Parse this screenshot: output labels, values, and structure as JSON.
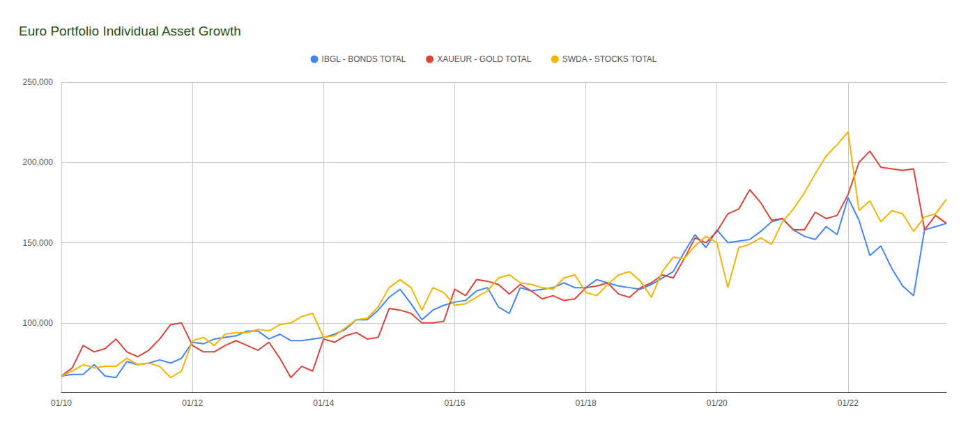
{
  "chart_data": {
    "type": "line",
    "title": "Euro Portfolio Individual Asset Growth",
    "categories": [
      "01/10",
      null,
      null,
      null,
      null,
      null,
      null,
      null,
      null,
      null,
      null,
      null,
      "01/12",
      null,
      null,
      null,
      null,
      null,
      null,
      null,
      null,
      null,
      null,
      null,
      "01/14",
      null,
      null,
      null,
      null,
      null,
      null,
      null,
      null,
      null,
      null,
      null,
      "01/16",
      null,
      null,
      null,
      null,
      null,
      null,
      null,
      null,
      null,
      null,
      null,
      "01/18",
      null,
      null,
      null,
      null,
      null,
      null,
      null,
      null,
      null,
      null,
      null,
      "01/20",
      null,
      null,
      null,
      null,
      null,
      null,
      null,
      null,
      null,
      null,
      null,
      "01/22",
      null,
      null,
      null,
      null,
      null,
      null,
      null,
      null,
      null
    ],
    "series": [
      {
        "name": "IBGL - BONDS TOTAL",
        "color": "#4285f4",
        "values": [
          67000,
          68000,
          68000,
          74000,
          67000,
          66000,
          76000,
          74000,
          75000,
          77000,
          75000,
          78000,
          88000,
          87000,
          90000,
          91000,
          92000,
          95000,
          95000,
          90000,
          93000,
          89000,
          89000,
          90000,
          91000,
          93000,
          96000,
          102000,
          102000,
          108000,
          116000,
          121000,
          112000,
          102000,
          108000,
          111000,
          113000,
          114000,
          120000,
          122000,
          110000,
          106000,
          122000,
          120000,
          121000,
          122000,
          125000,
          122000,
          122000,
          127000,
          125000,
          123000,
          122000,
          121000,
          124000,
          128000,
          132000,
          144000,
          155000,
          147000,
          158000,
          150000,
          151000,
          152000,
          157000,
          163000,
          165000,
          158000,
          154000,
          152000,
          160000,
          155000,
          178000,
          164000,
          142000,
          148000,
          134000,
          123000,
          117000,
          158000,
          160000,
          162000
        ]
      },
      {
        "name": "XAUEUR - GOLD TOTAL",
        "color": "#db4437",
        "values": [
          67000,
          72000,
          86000,
          82000,
          84000,
          90000,
          82000,
          79000,
          83000,
          90000,
          99000,
          100000,
          86000,
          82000,
          82000,
          86000,
          89000,
          86000,
          83000,
          88000,
          78000,
          66000,
          73000,
          70000,
          90000,
          88000,
          92000,
          94000,
          90000,
          91000,
          109000,
          108000,
          106000,
          100000,
          100000,
          101000,
          121000,
          117000,
          127000,
          126000,
          124000,
          118000,
          124000,
          120000,
          115000,
          117000,
          114000,
          115000,
          122000,
          123000,
          125000,
          118000,
          116000,
          122000,
          125000,
          130000,
          128000,
          140000,
          153000,
          150000,
          157000,
          168000,
          171000,
          183000,
          175000,
          164000,
          165000,
          158000,
          158000,
          169000,
          165000,
          167000,
          180000,
          200000,
          207000,
          197000,
          196000,
          195000,
          196000,
          158000,
          167000,
          162000
        ]
      },
      {
        "name": "SWDA - STOCKS TOTAL",
        "color": "#f4b400",
        "values": [
          67000,
          70000,
          74000,
          72000,
          73000,
          73000,
          78000,
          74000,
          75000,
          73000,
          66000,
          70000,
          89000,
          91000,
          86000,
          93000,
          94000,
          94000,
          96000,
          95000,
          99000,
          100000,
          104000,
          106000,
          91000,
          92000,
          97000,
          102000,
          103000,
          110000,
          122000,
          127000,
          122000,
          108000,
          122000,
          119000,
          111000,
          112000,
          116000,
          120000,
          128000,
          130000,
          125000,
          124000,
          122000,
          121000,
          128000,
          130000,
          119000,
          117000,
          124000,
          130000,
          132000,
          126000,
          116000,
          132000,
          141000,
          140000,
          148000,
          154000,
          150000,
          122000,
          147000,
          149000,
          153000,
          149000,
          163000,
          171000,
          181000,
          193000,
          204000,
          211000,
          219000,
          170000,
          176000,
          163000,
          170000,
          168000,
          157000,
          166000,
          168000,
          177000
        ]
      }
    ],
    "ylim": [
      57000,
      250000
    ],
    "yticks": [
      {
        "value": 100000,
        "label": "100,000"
      },
      {
        "value": 150000,
        "label": "150,000"
      },
      {
        "value": 200000,
        "label": "200,000"
      },
      {
        "value": 250000,
        "label": "250,000"
      }
    ],
    "grid": true,
    "legend": "top"
  }
}
